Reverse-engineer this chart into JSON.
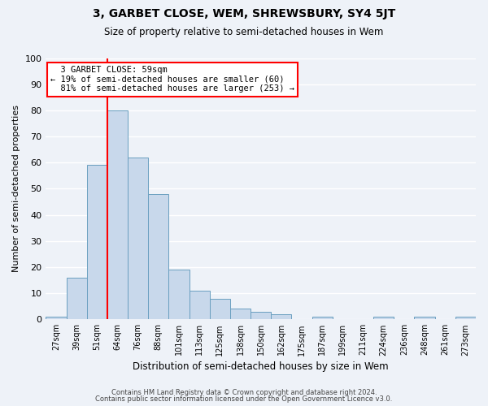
{
  "title": "3, GARBET CLOSE, WEM, SHREWSBURY, SY4 5JT",
  "subtitle": "Size of property relative to semi-detached houses in Wem",
  "xlabel": "Distribution of semi-detached houses by size in Wem",
  "ylabel": "Number of semi-detached properties",
  "categories": [
    "27sqm",
    "39sqm",
    "51sqm",
    "64sqm",
    "76sqm",
    "88sqm",
    "101sqm",
    "113sqm",
    "125sqm",
    "138sqm",
    "150sqm",
    "162sqm",
    "175sqm",
    "187sqm",
    "199sqm",
    "211sqm",
    "224sqm",
    "236sqm",
    "248sqm",
    "261sqm",
    "273sqm"
  ],
  "values": [
    1,
    16,
    59,
    80,
    62,
    48,
    19,
    11,
    8,
    4,
    3,
    2,
    0,
    1,
    0,
    0,
    1,
    0,
    1,
    0,
    1
  ],
  "bar_color": "#c8d8eb",
  "bar_edge_color": "#6a9fc0",
  "ylim": [
    0,
    100
  ],
  "yticks": [
    0,
    10,
    20,
    30,
    40,
    50,
    60,
    70,
    80,
    90,
    100
  ],
  "red_line_x": 2.5,
  "property_size": "59sqm",
  "pct_smaller": 19,
  "count_smaller": 60,
  "pct_larger": 81,
  "count_larger": 253,
  "annotation_label": "3 GARBET CLOSE: 59sqm",
  "footer_line1": "Contains HM Land Registry data © Crown copyright and database right 2024.",
  "footer_line2": "Contains public sector information licensed under the Open Government Licence v3.0.",
  "background_color": "#eef2f8",
  "grid_color": "#ffffff"
}
